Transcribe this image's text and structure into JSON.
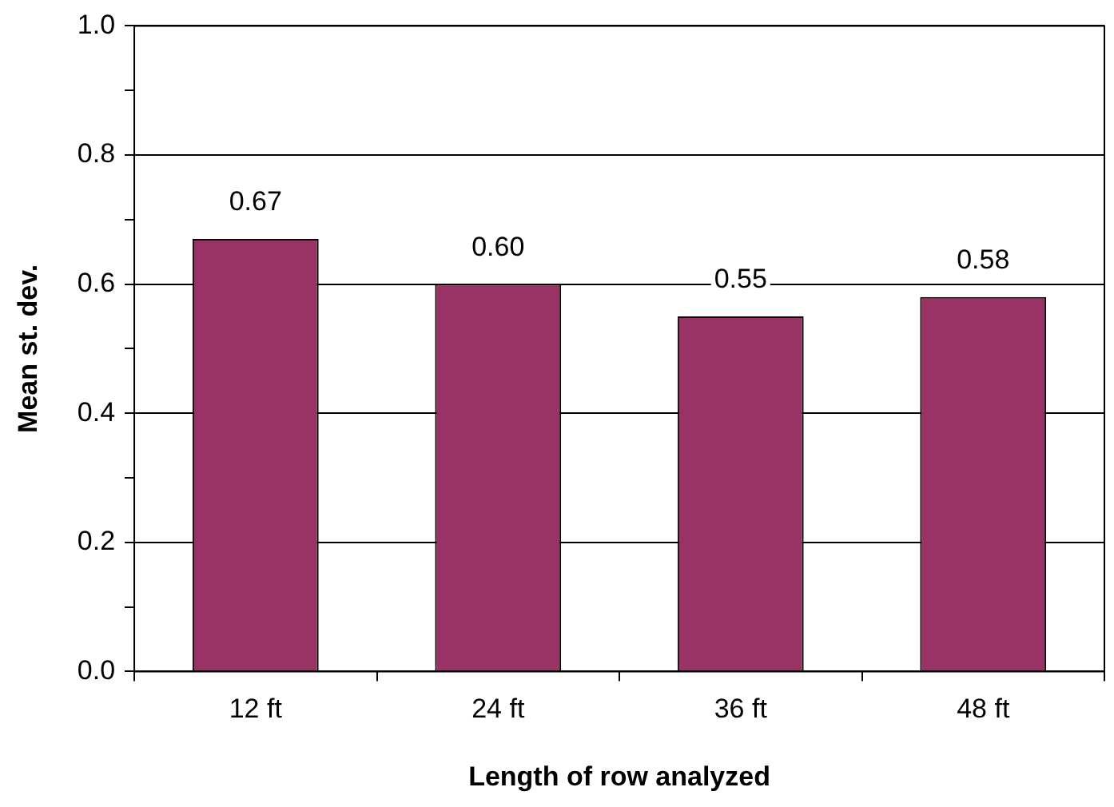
{
  "chart_data": {
    "type": "bar",
    "xlabel": "Length of row analyzed",
    "ylabel": "Mean st. dev.",
    "categories": [
      "12 ft",
      "24 ft",
      "36 ft",
      "48 ft"
    ],
    "values": [
      0.67,
      0.6,
      0.55,
      0.58
    ],
    "value_labels": [
      "0.67",
      "0.60",
      "0.55",
      "0.58"
    ],
    "color": "#993366",
    "ylim": [
      0,
      1
    ],
    "yticks": [
      {
        "value": 0,
        "label": "0.0"
      },
      {
        "value": 0.1,
        "label": null
      },
      {
        "value": 0.2,
        "label": "0.2"
      },
      {
        "value": 0.3,
        "label": null
      },
      {
        "value": 0.4,
        "label": "0.4"
      },
      {
        "value": 0.5,
        "label": null
      },
      {
        "value": 0.6,
        "label": "0.6"
      },
      {
        "value": 0.7,
        "label": null
      },
      {
        "value": 0.8,
        "label": "0.8"
      },
      {
        "value": 0.9,
        "label": null
      },
      {
        "value": 1,
        "label": "1.0"
      }
    ],
    "grid": "y",
    "legend": false
  }
}
